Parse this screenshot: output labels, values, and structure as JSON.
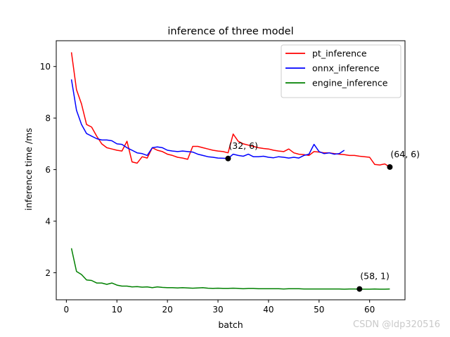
{
  "chart_data": {
    "type": "line",
    "title": "inference of three model",
    "xlabel": "batch",
    "ylabel": "inference time /ms",
    "xlim": [
      -2,
      67
    ],
    "ylim": [
      0.95,
      11.0
    ],
    "x_ticks": [
      0,
      10,
      20,
      30,
      40,
      50,
      60
    ],
    "y_ticks": [
      2,
      4,
      6,
      8,
      10
    ],
    "legend_position": "top-right",
    "series": [
      {
        "name": "pt_inference",
        "color": "#ff0000",
        "x": [
          1,
          2,
          3,
          4,
          5,
          6,
          7,
          8,
          9,
          10,
          11,
          12,
          13,
          14,
          15,
          16,
          17,
          18,
          19,
          20,
          21,
          22,
          23,
          24,
          25,
          26,
          27,
          28,
          29,
          30,
          31,
          32,
          33,
          34,
          35,
          36,
          37,
          38,
          39,
          40,
          41,
          42,
          43,
          44,
          45,
          46,
          47,
          48,
          49,
          50,
          51,
          52,
          53,
          54,
          55,
          56,
          57,
          58,
          59,
          60,
          61,
          62,
          63,
          64
        ],
        "values": [
          10.55,
          9.1,
          8.55,
          7.75,
          7.65,
          7.3,
          7.0,
          6.85,
          6.8,
          6.75,
          6.72,
          7.1,
          6.3,
          6.25,
          6.5,
          6.45,
          6.85,
          6.75,
          6.7,
          6.6,
          6.55,
          6.48,
          6.45,
          6.4,
          6.9,
          6.9,
          6.85,
          6.8,
          6.75,
          6.72,
          6.7,
          6.65,
          7.38,
          7.1,
          7.0,
          6.95,
          6.9,
          6.85,
          6.82,
          6.8,
          6.75,
          6.72,
          6.7,
          6.8,
          6.65,
          6.6,
          6.58,
          6.55,
          6.7,
          6.68,
          6.65,
          6.65,
          6.62,
          6.6,
          6.58,
          6.55,
          6.55,
          6.52,
          6.5,
          6.48,
          6.2,
          6.18,
          6.22,
          6.1
        ]
      },
      {
        "name": "onnx_inference",
        "color": "#0000ff",
        "x": [
          1,
          2,
          3,
          4,
          5,
          6,
          7,
          8,
          9,
          10,
          11,
          12,
          13,
          14,
          15,
          16,
          17,
          18,
          19,
          20,
          21,
          22,
          23,
          24,
          25,
          26,
          27,
          28,
          29,
          30,
          31,
          32,
          33,
          34,
          35,
          36,
          37,
          38,
          39,
          40,
          41,
          42,
          43,
          44,
          45,
          46,
          47,
          48,
          49,
          50,
          51,
          52,
          53,
          54,
          55
        ],
        "values": [
          9.5,
          8.3,
          7.75,
          7.4,
          7.3,
          7.2,
          7.15,
          7.15,
          7.12,
          7.0,
          6.98,
          6.85,
          6.75,
          6.65,
          6.62,
          6.55,
          6.85,
          6.88,
          6.85,
          6.75,
          6.72,
          6.7,
          6.72,
          6.7,
          6.68,
          6.6,
          6.55,
          6.5,
          6.48,
          6.45,
          6.44,
          6.43,
          6.6,
          6.55,
          6.52,
          6.6,
          6.5,
          6.5,
          6.52,
          6.48,
          6.46,
          6.5,
          6.48,
          6.45,
          6.48,
          6.45,
          6.55,
          6.6,
          6.98,
          6.7,
          6.62,
          6.65,
          6.6,
          6.62,
          6.75
        ]
      },
      {
        "name": "engine_inference",
        "color": "#008000",
        "x": [
          1,
          2,
          3,
          4,
          5,
          6,
          7,
          8,
          9,
          10,
          11,
          12,
          13,
          14,
          15,
          16,
          17,
          18,
          19,
          20,
          21,
          22,
          23,
          24,
          25,
          26,
          27,
          28,
          29,
          30,
          31,
          32,
          33,
          34,
          35,
          36,
          37,
          38,
          39,
          40,
          41,
          42,
          43,
          44,
          45,
          46,
          47,
          48,
          49,
          50,
          51,
          52,
          53,
          54,
          55,
          56,
          57,
          58,
          59,
          60,
          61,
          62,
          63,
          64
        ],
        "values": [
          2.95,
          2.05,
          1.93,
          1.72,
          1.7,
          1.6,
          1.6,
          1.55,
          1.6,
          1.52,
          1.48,
          1.48,
          1.45,
          1.46,
          1.44,
          1.45,
          1.42,
          1.45,
          1.43,
          1.42,
          1.42,
          1.41,
          1.42,
          1.41,
          1.4,
          1.41,
          1.42,
          1.4,
          1.39,
          1.4,
          1.39,
          1.39,
          1.4,
          1.39,
          1.38,
          1.39,
          1.39,
          1.38,
          1.38,
          1.38,
          1.38,
          1.38,
          1.37,
          1.38,
          1.38,
          1.38,
          1.37,
          1.37,
          1.37,
          1.37,
          1.37,
          1.37,
          1.37,
          1.37,
          1.36,
          1.37,
          1.37,
          1.36,
          1.36,
          1.36,
          1.37,
          1.36,
          1.36,
          1.37
        ]
      }
    ],
    "annotations": [
      {
        "x": 32,
        "y": 6.43,
        "label": "(32, 6)"
      },
      {
        "x": 64,
        "y": 6.1,
        "label": "(64, 6)"
      },
      {
        "x": 58,
        "y": 1.37,
        "label": "(58, 1)"
      }
    ]
  },
  "watermark": "CSDN @ldp320516"
}
